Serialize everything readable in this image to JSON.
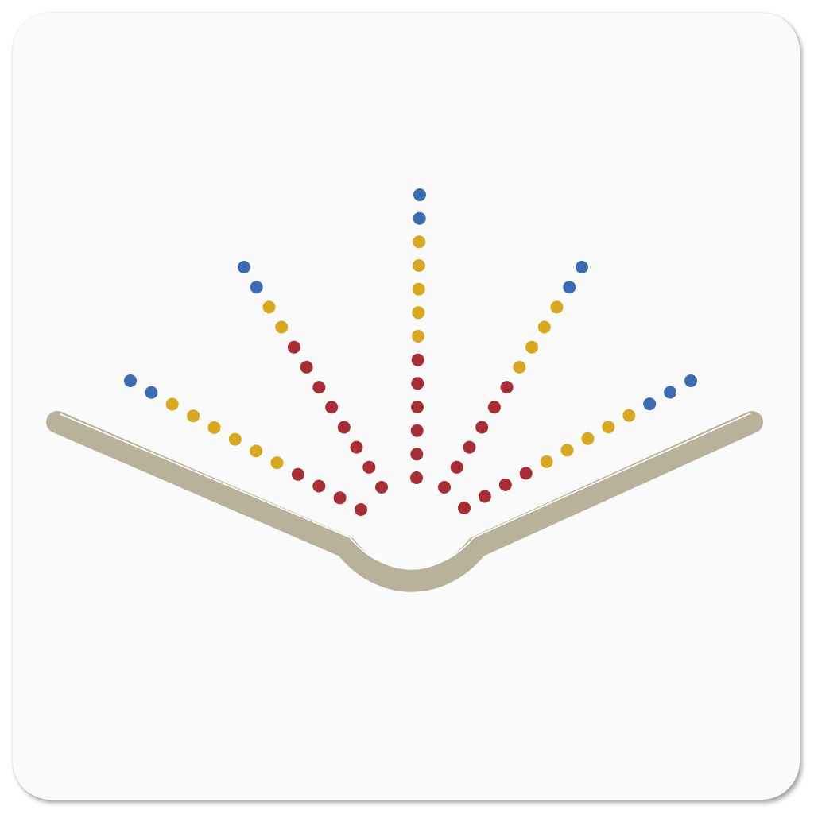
{
  "icon": {
    "name": "open-book-with-radiating-dots-icon",
    "colors": {
      "tile_background": "#fafafa",
      "book": "#b8b29a",
      "book_highlight": "#ffffff",
      "dot_blue": "#3a6bb3",
      "dot_gold": "#d9a821",
      "dot_red": "#a82e35"
    },
    "rays": [
      {
        "name": "ray-far-left",
        "dots": [
          "blue",
          "blue",
          "gold",
          "gold",
          "gold",
          "gold",
          "gold",
          "gold",
          "red",
          "red",
          "red",
          "red"
        ]
      },
      {
        "name": "ray-left",
        "dots": [
          "blue",
          "blue",
          "gold",
          "gold",
          "red",
          "red",
          "red",
          "red",
          "red",
          "red",
          "red",
          "red"
        ]
      },
      {
        "name": "ray-center",
        "dots": [
          "blue",
          "blue",
          "gold",
          "gold",
          "gold",
          "gold",
          "gold",
          "red",
          "red",
          "red",
          "red",
          "red",
          "red"
        ]
      },
      {
        "name": "ray-right",
        "dots": [
          "blue",
          "blue",
          "gold",
          "gold",
          "gold",
          "gold",
          "red",
          "red",
          "red",
          "red",
          "red",
          "red"
        ]
      },
      {
        "name": "ray-far-right",
        "dots": [
          "blue",
          "blue",
          "blue",
          "gold",
          "gold",
          "gold",
          "gold",
          "gold",
          "red",
          "red",
          "red",
          "red"
        ]
      }
    ]
  }
}
